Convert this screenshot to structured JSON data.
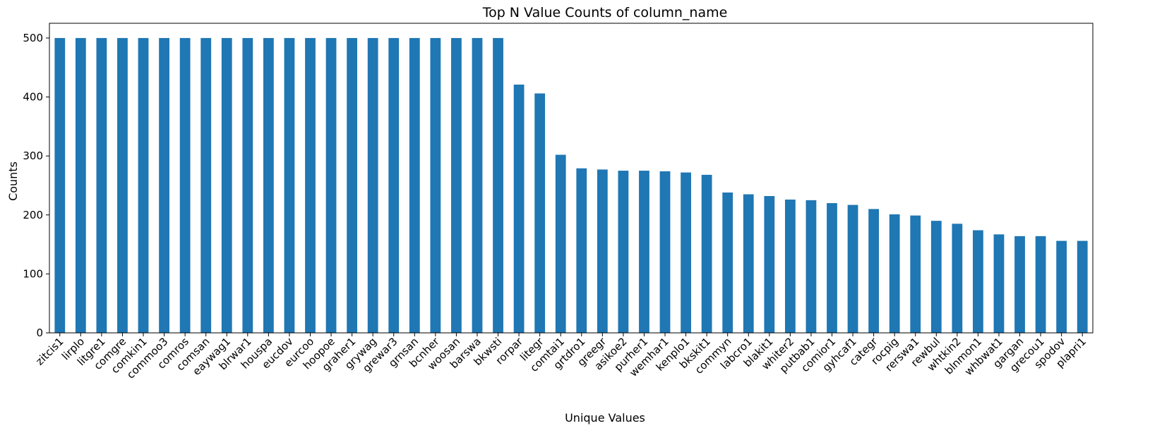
{
  "chart_data": {
    "type": "bar",
    "title": "Top N Value Counts of column_name",
    "xlabel": "Unique Values",
    "ylabel": "Counts",
    "ylim": [
      0,
      525
    ],
    "yticks": [
      0,
      100,
      200,
      300,
      400,
      500
    ],
    "grid": false,
    "bar_color": "#1f77b4",
    "categories": [
      "zitcis1",
      "lirplo",
      "litgre1",
      "comgre",
      "comkin1",
      "commoo3",
      "comros",
      "comsan",
      "eaywag1",
      "blrwar1",
      "houspa",
      "eucdov",
      "eurcoo",
      "hoopoe",
      "graher1",
      "grywag",
      "grewar3",
      "grnsan",
      "bcnher",
      "woosan",
      "barswa",
      "bkwsti",
      "rorpar",
      "litegr",
      "comtai1",
      "grtdro1",
      "greegr",
      "asikoe2",
      "purher1",
      "wemhar1",
      "kenplo1",
      "bkskit1",
      "commyn",
      "labcro1",
      "blakit1",
      "whiter2",
      "putbab1",
      "comior1",
      "gyhcaf1",
      "categr",
      "rocpig",
      "rerswa1",
      "rewbul",
      "whtkin2",
      "blnmon1",
      "whbwat1",
      "gargan",
      "grecou1",
      "spodov",
      "plapri1"
    ],
    "values": [
      500,
      500,
      500,
      500,
      500,
      500,
      500,
      500,
      500,
      500,
      500,
      500,
      500,
      500,
      500,
      500,
      500,
      500,
      500,
      500,
      500,
      500,
      421,
      406,
      302,
      279,
      277,
      275,
      275,
      274,
      272,
      268,
      238,
      235,
      232,
      226,
      225,
      220,
      217,
      210,
      201,
      199,
      190,
      185,
      174,
      167,
      164,
      164,
      156,
      156
    ]
  }
}
